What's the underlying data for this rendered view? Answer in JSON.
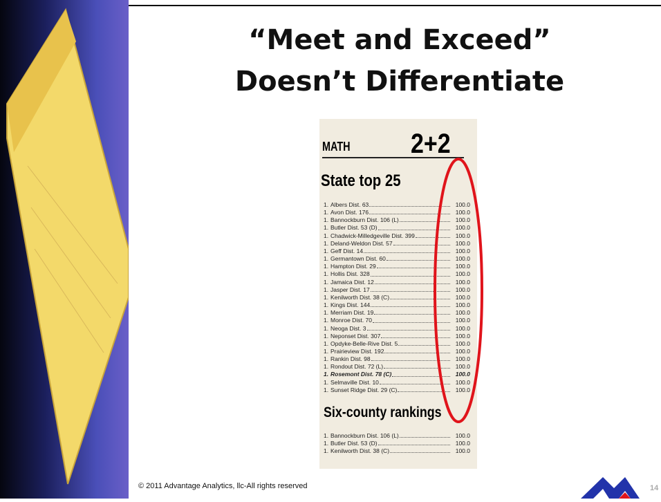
{
  "slide": {
    "title_lines": [
      "“Meet and Exceed”",
      "Doesn’t Differentiate"
    ],
    "clipping": {
      "section": "MATH",
      "headline": "2+2",
      "state_heading": "State top 25",
      "state_rows": [
        {
          "rank": "1.",
          "name": "Albers Dist. 63",
          "value": "100.0"
        },
        {
          "rank": "1.",
          "name": "Avon Dist. 176",
          "value": "100.0"
        },
        {
          "rank": "1.",
          "name": "Bannockburn Dist. 106 (L)",
          "value": "100.0"
        },
        {
          "rank": "1.",
          "name": "Butler Dist. 53 (D)",
          "value": "100.0"
        },
        {
          "rank": "1.",
          "name": "Chadwick-Milledgeville Dist. 399",
          "value": "100.0"
        },
        {
          "rank": "1.",
          "name": "Deland-Weldon Dist. 57",
          "value": "100.0"
        },
        {
          "rank": "1.",
          "name": "Geff Dist. 14",
          "value": "100.0"
        },
        {
          "rank": "1.",
          "name": "Germantown Dist. 60",
          "value": "100.0"
        },
        {
          "rank": "1.",
          "name": "Hampton Dist. 29",
          "value": "100.0"
        },
        {
          "rank": "1.",
          "name": "Hollis Dist. 328",
          "value": "100.0"
        },
        {
          "rank": "1.",
          "name": "Jamaica Dist. 12",
          "value": "100.0"
        },
        {
          "rank": "1.",
          "name": "Jasper Dist. 17",
          "value": "100.0"
        },
        {
          "rank": "1.",
          "name": "Kenilworth Dist. 38 (C)",
          "value": "100.0"
        },
        {
          "rank": "1.",
          "name": "Kings Dist. 144",
          "value": "100.0"
        },
        {
          "rank": "1.",
          "name": "Merriam Dist. 19",
          "value": "100.0"
        },
        {
          "rank": "1.",
          "name": "Monroe Dist. 70",
          "value": "100.0"
        },
        {
          "rank": "1.",
          "name": "Neoga Dist. 3",
          "value": "100.0"
        },
        {
          "rank": "1.",
          "name": "Neponset Dist. 307",
          "value": "100.0"
        },
        {
          "rank": "1.",
          "name": "Opdyke-Belle-Rive Dist. 5",
          "value": "100.0"
        },
        {
          "rank": "1.",
          "name": "Prairieview Dist. 192",
          "value": "100.0"
        },
        {
          "rank": "1.",
          "name": "Rankin Dist. 98",
          "value": "100.0"
        },
        {
          "rank": "1.",
          "name": "Rondout Dist. 72 (L)",
          "value": "100.0"
        },
        {
          "rank": "1.",
          "name": "Rosemont Dist. 78 (C)",
          "value": "100.0"
        },
        {
          "rank": "1.",
          "name": "Selmaville Dist. 10",
          "value": "100.0"
        },
        {
          "rank": "1.",
          "name": "Sunset Ridge Dist. 29 (C)",
          "value": "100.0"
        }
      ],
      "county_heading": "Six-county rankings",
      "county_rows": [
        {
          "rank": "1.",
          "name": "Bannockburn Dist. 106 (L)",
          "value": "100.0"
        },
        {
          "rank": "1.",
          "name": "Butler Dist. 53 (D)",
          "value": "100.0"
        },
        {
          "rank": "1.",
          "name": "Kenilworth Dist. 38 (C)",
          "value": "100.0"
        }
      ]
    },
    "footer": "© 2011 Advantage Analytics, llc-All rights reserved",
    "page_number": "14"
  }
}
